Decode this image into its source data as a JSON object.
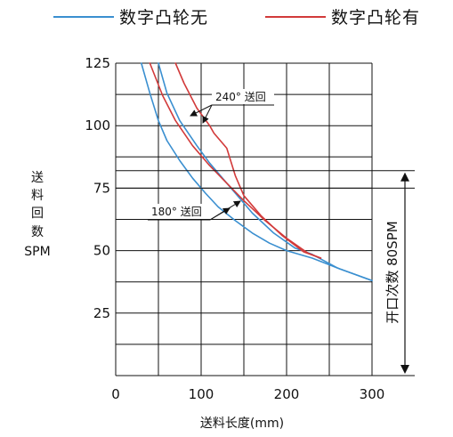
{
  "chart_data": {
    "type": "line",
    "title": "",
    "xlabel": "送料长度(mm)",
    "ylabel": [
      "送",
      "料",
      "回",
      "数",
      "SPM"
    ],
    "xlim": [
      0,
      300
    ],
    "ylim": [
      0,
      125
    ],
    "x_ticks": [
      0,
      100,
      200,
      300
    ],
    "x_tick_labels": [
      "0",
      "100",
      "200",
      "300"
    ],
    "y_ticks": [
      25,
      50,
      75,
      100,
      125
    ],
    "y_tick_labels": [
      "25",
      "50",
      "75",
      "100",
      "125"
    ],
    "grid": true,
    "legend_position": "top",
    "legend": [
      {
        "label": "数字凸轮无",
        "color": "#3a8fd0"
      },
      {
        "label": "数字凸轮有",
        "color": "#d23a3a"
      }
    ],
    "series": [
      {
        "key": "cam-off-180",
        "color": "#3a8fd0",
        "points": [
          [
            30,
            125
          ],
          [
            40,
            113
          ],
          [
            50,
            102
          ],
          [
            60,
            94
          ],
          [
            75,
            86
          ],
          [
            90,
            79
          ],
          [
            105,
            73
          ],
          [
            120,
            67.5
          ],
          [
            140,
            62
          ],
          [
            160,
            57
          ],
          [
            180,
            53
          ],
          [
            200,
            50
          ],
          [
            230,
            47
          ],
          [
            260,
            43
          ],
          [
            300,
            38
          ]
        ]
      },
      {
        "key": "cam-off-240",
        "color": "#3a8fd0",
        "points": [
          [
            50,
            125
          ],
          [
            60,
            113
          ],
          [
            75,
            102
          ],
          [
            95,
            92
          ],
          [
            110,
            85
          ],
          [
            125,
            79
          ],
          [
            140,
            73
          ],
          [
            160,
            65
          ],
          [
            185,
            57
          ],
          [
            210,
            51
          ],
          [
            230,
            48.5
          ],
          [
            260,
            43
          ],
          [
            300,
            38
          ]
        ]
      },
      {
        "key": "cam-on-180",
        "color": "#d23a3a",
        "points": [
          [
            40,
            125
          ],
          [
            55,
            112
          ],
          [
            70,
            102
          ],
          [
            90,
            92
          ],
          [
            110,
            84
          ],
          [
            130,
            77
          ],
          [
            150,
            70
          ],
          [
            175,
            62
          ],
          [
            200,
            55
          ],
          [
            225,
            49
          ],
          [
            240,
            47
          ]
        ]
      },
      {
        "key": "cam-on-240",
        "color": "#d23a3a",
        "points": [
          [
            70,
            125
          ],
          [
            80,
            117
          ],
          [
            95,
            107
          ],
          [
            110,
            100
          ],
          [
            115,
            97
          ],
          [
            130,
            91
          ],
          [
            140,
            80
          ],
          [
            150,
            72
          ],
          [
            170,
            64
          ],
          [
            195,
            56
          ],
          [
            220,
            49.5
          ],
          [
            240,
            47
          ]
        ]
      }
    ],
    "reference_lines": [
      {
        "key": "open-count-high",
        "y": 82
      },
      {
        "key": "open-count-low",
        "y": 75
      }
    ],
    "annotations": [
      {
        "key": "feed-240",
        "text": "240° 送回",
        "x": 118,
        "y": 108
      },
      {
        "key": "feed-180",
        "text": "180° 送回",
        "x": 78,
        "y": 66
      }
    ],
    "band_label": "开口次数 80SPM"
  }
}
